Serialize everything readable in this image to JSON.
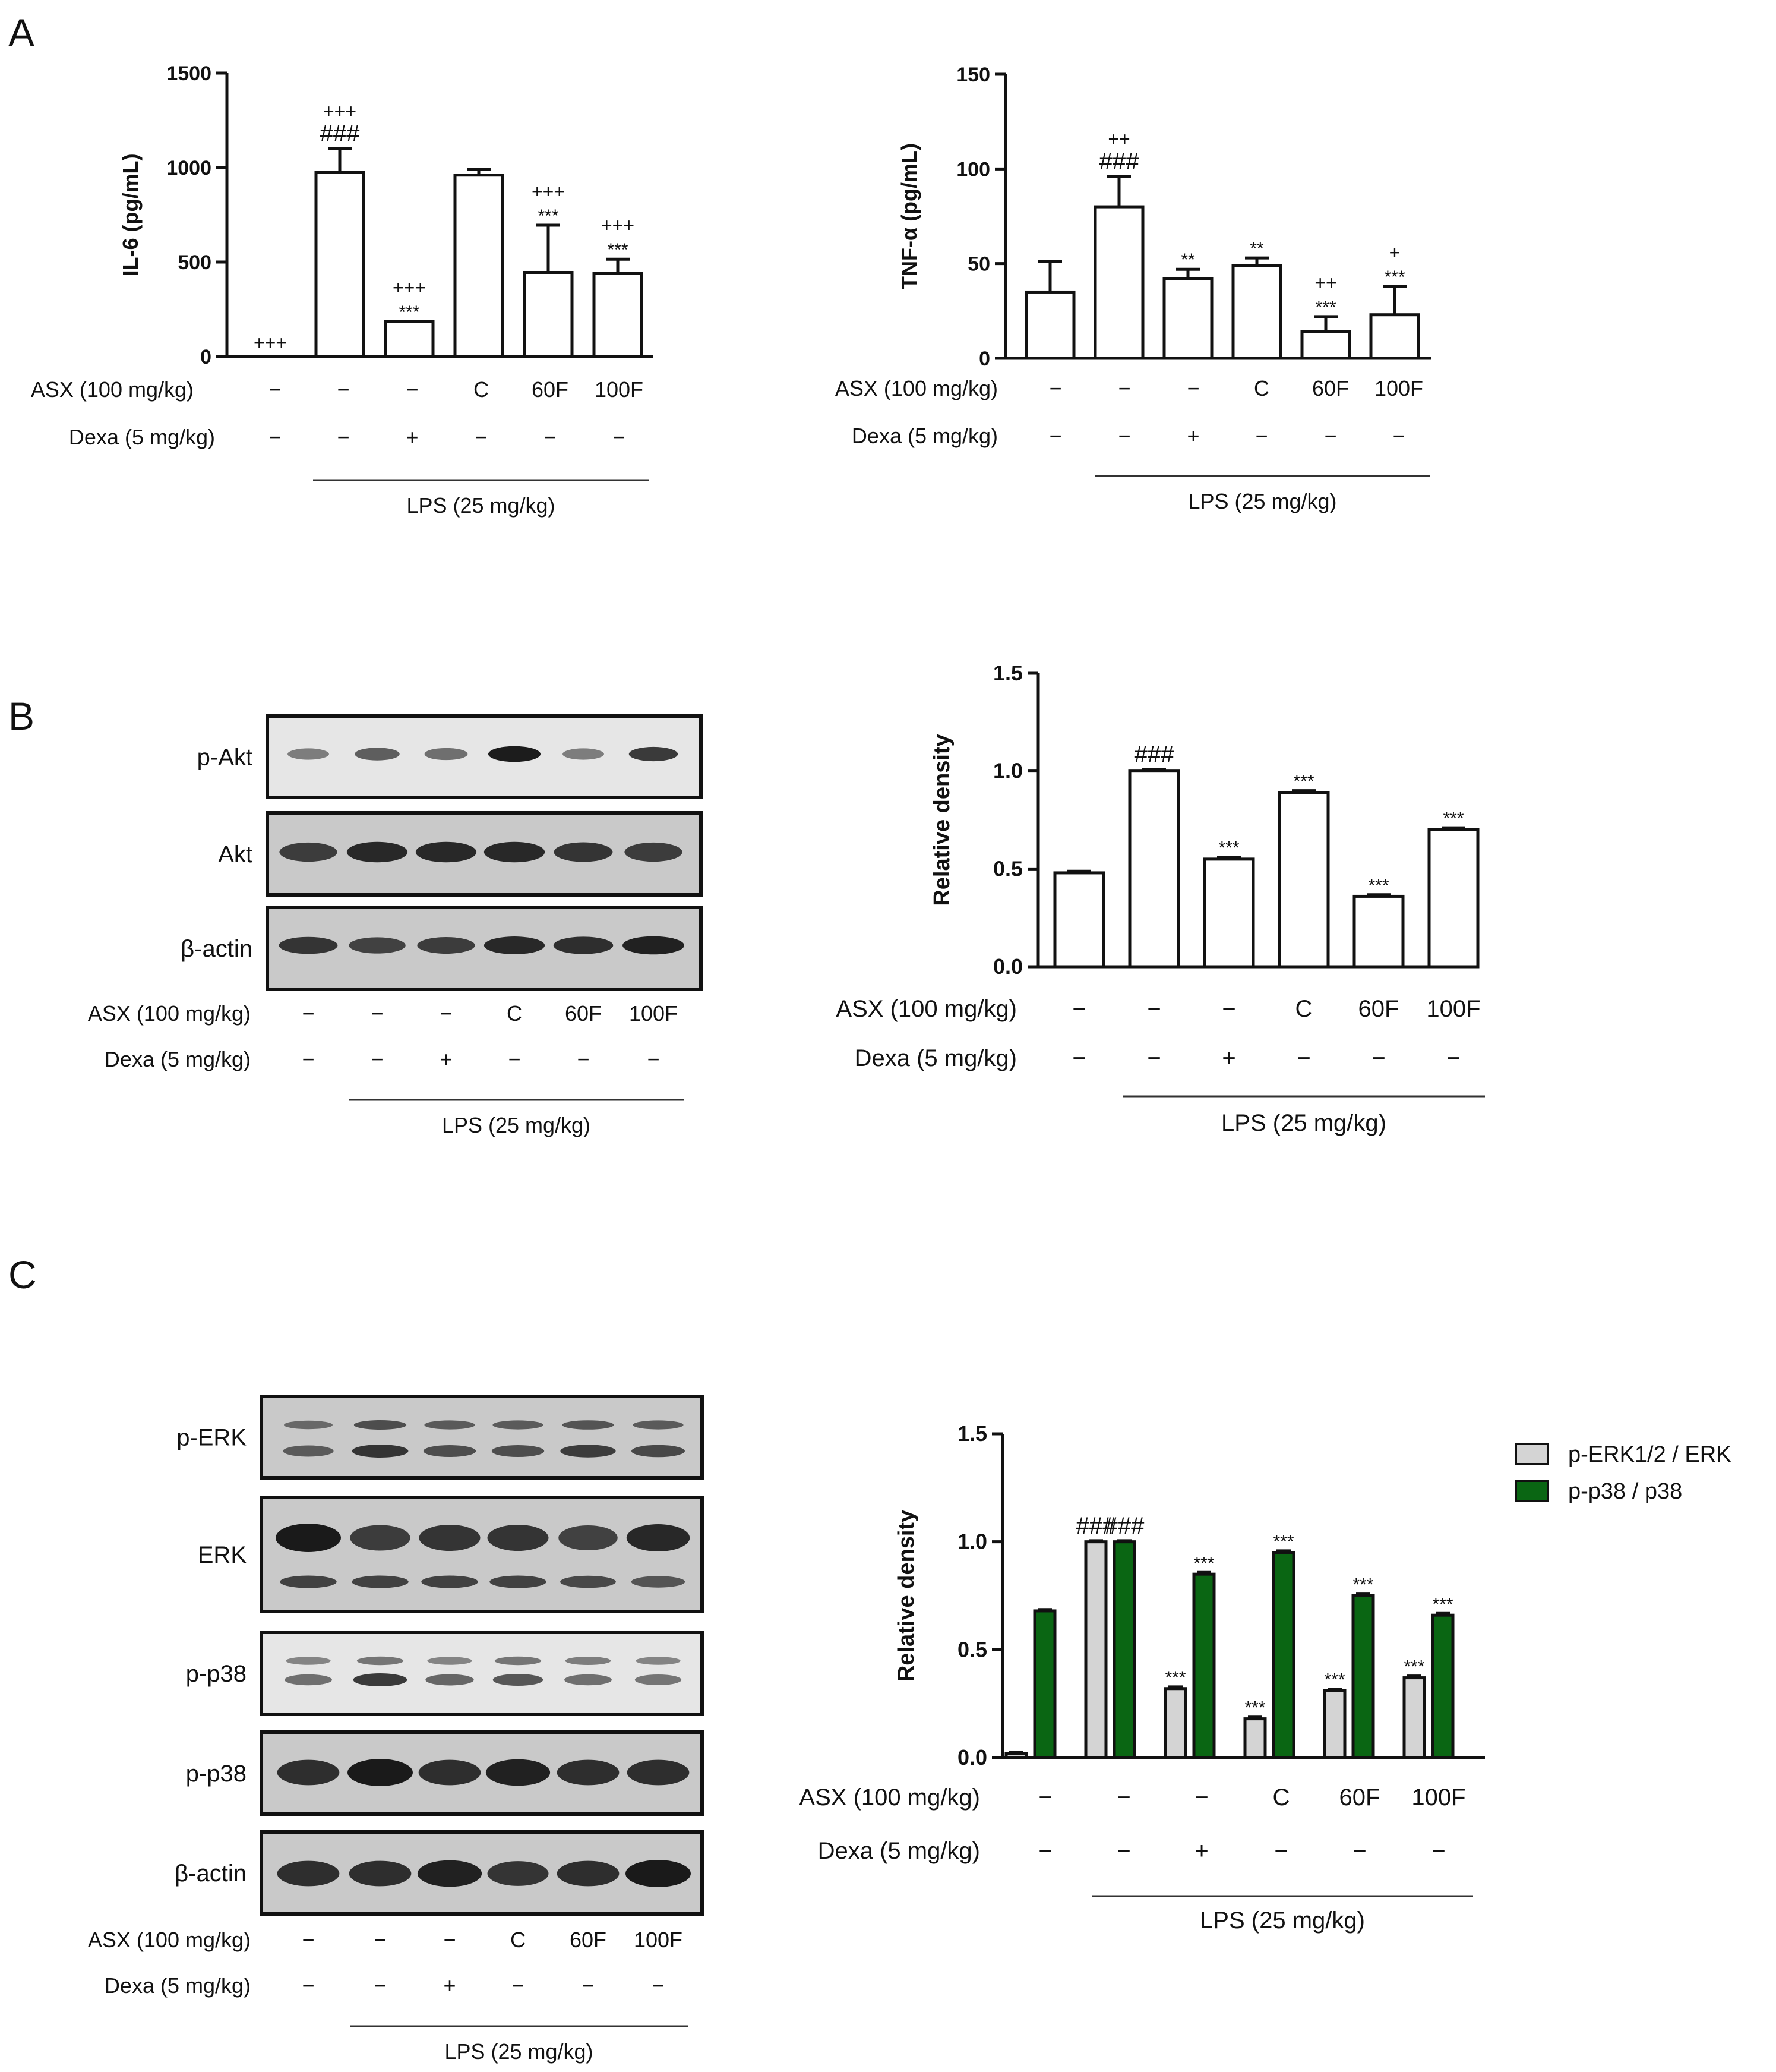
{
  "panels": {
    "A": "A",
    "B": "B",
    "C": "C"
  },
  "treatments": {
    "asx_label": "ASX (100 mg/kg)",
    "dexa_label": "Dexa (5 mg/kg)",
    "lps_label": "LPS (25 mg/kg)",
    "asx_values": [
      "−",
      "−",
      "−",
      "C",
      "60F",
      "100F"
    ],
    "dexa_values": [
      "−",
      "−",
      "+",
      "−",
      "−",
      "−"
    ]
  },
  "blots": {
    "B": [
      {
        "label": "p-Akt"
      },
      {
        "label": "Akt"
      },
      {
        "label": "β-actin"
      }
    ],
    "C": [
      {
        "label": "p-ERK"
      },
      {
        "label": "ERK"
      },
      {
        "label": "p-p38"
      },
      {
        "label": "p-p38"
      },
      {
        "label": "β-actin"
      }
    ]
  },
  "colors": {
    "bar_white": "#ffffff",
    "bar_gray": "#d4d4d4",
    "bar_green": "#0a6613",
    "ink": "#111111"
  },
  "chart_data": [
    {
      "id": "il6",
      "type": "bar",
      "ylabel": "IL-6 (pg/mL)",
      "ylim": [
        0,
        1500
      ],
      "yticks": [
        0,
        500,
        1000,
        1500
      ],
      "series": [
        {
          "values": [
            0,
            975,
            185,
            960,
            445,
            440
          ],
          "errors": [
            0,
            125,
            0,
            30,
            250,
            75
          ],
          "annotations": [
            [
              "+++"
            ],
            [
              "+++",
              "###"
            ],
            [
              "+++",
              "***"
            ],
            [],
            [
              "+++",
              "***"
            ],
            [
              "+++",
              "***"
            ]
          ]
        }
      ]
    },
    {
      "id": "tnf",
      "type": "bar",
      "ylabel": "TNF-α (pg/mL)",
      "ylim": [
        0,
        150
      ],
      "yticks": [
        0,
        50,
        100,
        150
      ],
      "series": [
        {
          "values": [
            35,
            80,
            42,
            49,
            14,
            23
          ],
          "errors": [
            16,
            16,
            5,
            4,
            8,
            15
          ],
          "annotations": [
            [],
            [
              "++",
              "###"
            ],
            [
              "**"
            ],
            [
              "**"
            ],
            [
              "++",
              "***"
            ],
            [
              "+",
              "***"
            ]
          ]
        }
      ]
    },
    {
      "id": "akt",
      "type": "bar",
      "ylabel": "Relative density",
      "ylim": [
        0,
        1.5
      ],
      "yticks": [
        "0.0",
        "0.5",
        "1.0",
        "1.5"
      ],
      "series": [
        {
          "values": [
            0.48,
            1.0,
            0.55,
            0.89,
            0.36,
            0.7
          ],
          "errors": [
            0.008,
            0.008,
            0.01,
            0.01,
            0.008,
            0.01
          ],
          "annotations": [
            [],
            [
              "###"
            ],
            [
              "***"
            ],
            [
              "***"
            ],
            [
              "***"
            ],
            [
              "***"
            ]
          ]
        }
      ]
    },
    {
      "id": "mapk",
      "type": "bar",
      "ylabel": "Relative density",
      "ylim": [
        0,
        1.5
      ],
      "yticks": [
        "0.0",
        "0.5",
        "1.0",
        "1.5"
      ],
      "legend_position": "top-right",
      "series": [
        {
          "name": "p-ERK1/2 / ERK",
          "color": "#d4d4d4",
          "values": [
            0.02,
            1.0,
            0.32,
            0.18,
            0.31,
            0.37
          ],
          "errors": [
            0.004,
            0.005,
            0.008,
            0.008,
            0.008,
            0.008
          ],
          "annotations": [
            [],
            [
              "###"
            ],
            [
              "***"
            ],
            [
              "***"
            ],
            [
              "***"
            ],
            [
              "***"
            ]
          ]
        },
        {
          "name": "p-p38 / p38",
          "color": "#0a6613",
          "values": [
            0.68,
            1.0,
            0.85,
            0.95,
            0.75,
            0.66
          ],
          "errors": [
            0.006,
            0.005,
            0.008,
            0.008,
            0.008,
            0.008
          ],
          "annotations": [
            [],
            [
              "###"
            ],
            [
              "***"
            ],
            [
              "***"
            ],
            [
              "***"
            ],
            [
              "***"
            ]
          ]
        }
      ]
    }
  ]
}
